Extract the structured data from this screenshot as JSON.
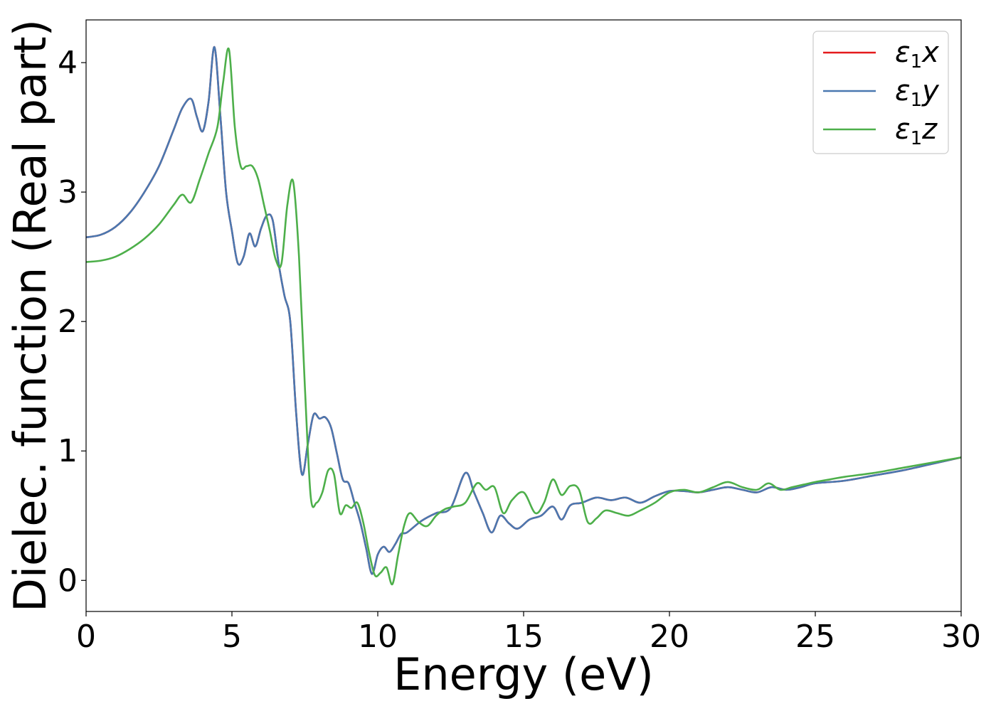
{
  "chart_data": {
    "type": "line",
    "xlabel": "Energy (eV)",
    "ylabel": "Dielec. function (Real part)",
    "xlim": [
      0,
      30
    ],
    "ylim": [
      -0.24,
      4.33
    ],
    "xticks": [
      0,
      5,
      10,
      15,
      20,
      25,
      30
    ],
    "yticks": [
      0,
      1,
      2,
      3,
      4
    ],
    "grid": false,
    "legend_position": "top-right",
    "series": [
      {
        "name": "ε1x",
        "legend_base": "ε",
        "legend_sub": "1",
        "legend_var": "x",
        "color": "#e41a1c",
        "x": [
          0,
          0.5,
          1.0,
          1.5,
          2.0,
          2.5,
          3.0,
          3.3,
          3.6,
          3.8,
          4.0,
          4.2,
          4.4,
          4.6,
          4.8,
          5.0,
          5.2,
          5.4,
          5.6,
          5.8,
          6.0,
          6.2,
          6.4,
          6.6,
          6.8,
          7.0,
          7.2,
          7.4,
          7.6,
          7.8,
          8.0,
          8.2,
          8.4,
          8.6,
          8.8,
          9.0,
          9.2,
          9.4,
          9.6,
          9.8,
          10.0,
          10.2,
          10.4,
          10.6,
          10.8,
          11.0,
          11.5,
          12.0,
          12.5,
          13.0,
          13.3,
          13.6,
          13.9,
          14.2,
          14.5,
          14.8,
          15.2,
          15.6,
          16.0,
          16.3,
          16.6,
          17.0,
          17.5,
          18.0,
          18.5,
          19.0,
          19.5,
          20.0,
          20.5,
          21.0,
          21.5,
          22.0,
          22.5,
          23.0,
          23.5,
          24.0,
          24.5,
          25.0,
          26.0,
          27.0,
          28.0,
          29.0,
          30.0
        ],
        "y": [
          2.65,
          2.67,
          2.73,
          2.84,
          3.0,
          3.2,
          3.48,
          3.65,
          3.72,
          3.58,
          3.47,
          3.7,
          4.12,
          3.6,
          3.0,
          2.7,
          2.45,
          2.5,
          2.68,
          2.58,
          2.72,
          2.82,
          2.78,
          2.45,
          2.2,
          2.0,
          1.3,
          0.82,
          1.05,
          1.28,
          1.25,
          1.26,
          1.18,
          0.98,
          0.78,
          0.75,
          0.6,
          0.45,
          0.25,
          0.05,
          0.2,
          0.26,
          0.22,
          0.28,
          0.36,
          0.37,
          0.46,
          0.52,
          0.56,
          0.83,
          0.68,
          0.52,
          0.37,
          0.5,
          0.44,
          0.4,
          0.47,
          0.5,
          0.57,
          0.47,
          0.58,
          0.6,
          0.64,
          0.62,
          0.64,
          0.6,
          0.65,
          0.69,
          0.69,
          0.68,
          0.7,
          0.72,
          0.7,
          0.68,
          0.72,
          0.7,
          0.72,
          0.75,
          0.77,
          0.81,
          0.85,
          0.9,
          0.95
        ]
      },
      {
        "name": "ε1y",
        "legend_base": "ε",
        "legend_sub": "1",
        "legend_var": "y",
        "color": "#4a78b0",
        "x": [
          0,
          0.5,
          1.0,
          1.5,
          2.0,
          2.5,
          3.0,
          3.3,
          3.6,
          3.8,
          4.0,
          4.2,
          4.4,
          4.6,
          4.8,
          5.0,
          5.2,
          5.4,
          5.6,
          5.8,
          6.0,
          6.2,
          6.4,
          6.6,
          6.8,
          7.0,
          7.2,
          7.4,
          7.6,
          7.8,
          8.0,
          8.2,
          8.4,
          8.6,
          8.8,
          9.0,
          9.2,
          9.4,
          9.6,
          9.8,
          10.0,
          10.2,
          10.4,
          10.6,
          10.8,
          11.0,
          11.5,
          12.0,
          12.5,
          13.0,
          13.3,
          13.6,
          13.9,
          14.2,
          14.5,
          14.8,
          15.2,
          15.6,
          16.0,
          16.3,
          16.6,
          17.0,
          17.5,
          18.0,
          18.5,
          19.0,
          19.5,
          20.0,
          20.5,
          21.0,
          21.5,
          22.0,
          22.5,
          23.0,
          23.5,
          24.0,
          24.5,
          25.0,
          26.0,
          27.0,
          28.0,
          29.0,
          30.0
        ],
        "y": [
          2.65,
          2.67,
          2.73,
          2.84,
          3.0,
          3.2,
          3.48,
          3.65,
          3.72,
          3.58,
          3.47,
          3.7,
          4.12,
          3.6,
          3.0,
          2.7,
          2.45,
          2.5,
          2.68,
          2.58,
          2.72,
          2.82,
          2.78,
          2.45,
          2.2,
          2.0,
          1.3,
          0.82,
          1.05,
          1.28,
          1.25,
          1.26,
          1.18,
          0.98,
          0.78,
          0.75,
          0.6,
          0.45,
          0.25,
          0.05,
          0.2,
          0.26,
          0.22,
          0.28,
          0.36,
          0.37,
          0.46,
          0.52,
          0.56,
          0.83,
          0.68,
          0.52,
          0.37,
          0.5,
          0.44,
          0.4,
          0.47,
          0.5,
          0.57,
          0.47,
          0.58,
          0.6,
          0.64,
          0.62,
          0.64,
          0.6,
          0.65,
          0.69,
          0.69,
          0.68,
          0.7,
          0.72,
          0.7,
          0.68,
          0.72,
          0.7,
          0.72,
          0.75,
          0.77,
          0.81,
          0.85,
          0.9,
          0.95
        ]
      },
      {
        "name": "ε1z",
        "legend_base": "ε",
        "legend_sub": "1",
        "legend_var": "z",
        "color": "#4daf4a",
        "x": [
          0,
          0.5,
          1.0,
          1.5,
          2.0,
          2.5,
          3.0,
          3.3,
          3.6,
          3.9,
          4.2,
          4.5,
          4.7,
          4.9,
          5.1,
          5.3,
          5.5,
          5.7,
          5.9,
          6.1,
          6.3,
          6.5,
          6.7,
          6.9,
          7.1,
          7.3,
          7.5,
          7.7,
          7.9,
          8.1,
          8.3,
          8.5,
          8.7,
          8.9,
          9.1,
          9.3,
          9.5,
          9.7,
          9.9,
          10.1,
          10.3,
          10.5,
          10.7,
          10.9,
          11.1,
          11.4,
          11.7,
          12.0,
          12.3,
          12.6,
          13.0,
          13.4,
          13.7,
          14.0,
          14.3,
          14.6,
          15.0,
          15.4,
          15.7,
          16.0,
          16.3,
          16.6,
          16.9,
          17.2,
          17.5,
          17.8,
          18.2,
          18.6,
          19.0,
          19.5,
          20.0,
          20.5,
          21.0,
          21.5,
          22.0,
          22.5,
          23.0,
          23.4,
          23.8,
          24.2,
          24.6,
          25.0,
          25.5,
          26.0,
          27.0,
          28.0,
          29.0,
          30.0
        ],
        "y": [
          2.46,
          2.47,
          2.5,
          2.56,
          2.64,
          2.75,
          2.9,
          2.98,
          2.92,
          3.1,
          3.3,
          3.5,
          3.85,
          4.1,
          3.5,
          3.2,
          3.2,
          3.2,
          3.1,
          2.9,
          2.7,
          2.48,
          2.45,
          2.9,
          3.08,
          2.5,
          1.5,
          0.65,
          0.6,
          0.68,
          0.85,
          0.82,
          0.52,
          0.58,
          0.56,
          0.6,
          0.45,
          0.22,
          0.04,
          0.06,
          0.1,
          -0.03,
          0.2,
          0.42,
          0.52,
          0.45,
          0.42,
          0.5,
          0.55,
          0.57,
          0.6,
          0.75,
          0.7,
          0.72,
          0.52,
          0.62,
          0.68,
          0.52,
          0.6,
          0.78,
          0.66,
          0.73,
          0.7,
          0.45,
          0.48,
          0.54,
          0.52,
          0.5,
          0.54,
          0.6,
          0.68,
          0.7,
          0.68,
          0.72,
          0.76,
          0.72,
          0.7,
          0.75,
          0.7,
          0.72,
          0.74,
          0.76,
          0.78,
          0.8,
          0.83,
          0.87,
          0.91,
          0.95
        ]
      }
    ]
  }
}
